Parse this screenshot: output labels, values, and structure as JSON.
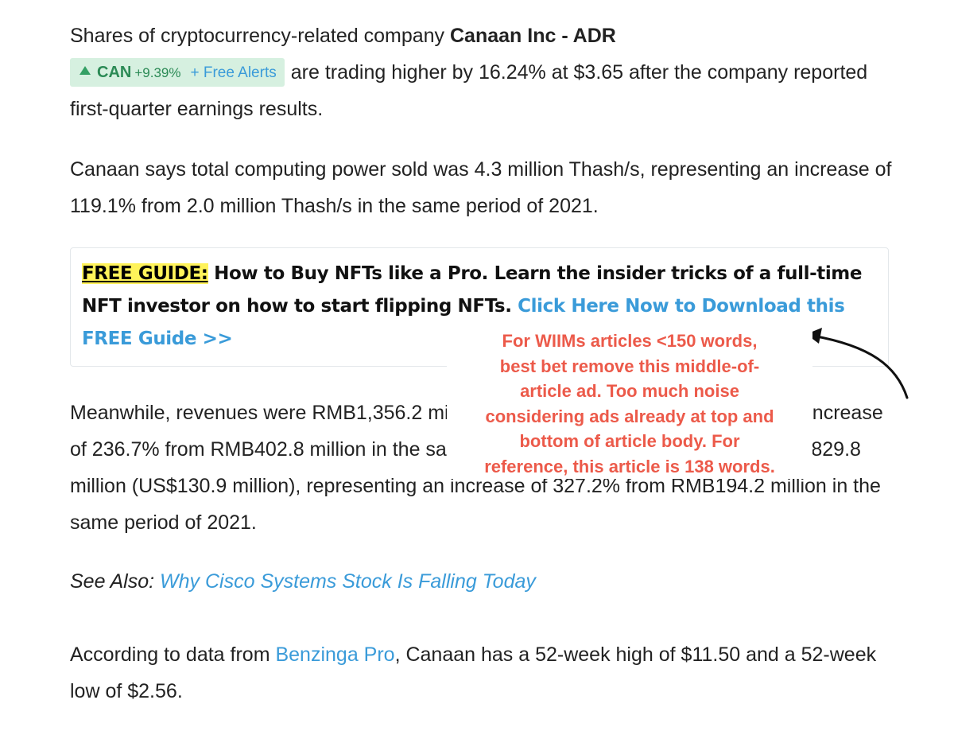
{
  "article": {
    "p1": {
      "text_before": "Shares of cryptocurrency-related company ",
      "company": "Canaan Inc - ADR",
      "text_after": "are trading higher by 16.24% at $3.65 after the company reported first-quarter earnings results."
    },
    "ticker": {
      "symbol": "CAN",
      "change": "+9.39%",
      "alerts_label": "+ Free Alerts"
    },
    "p2": "Canaan says total computing power sold was 4.3 million Thash/s, representing an increase of 119.1% from 2.0 million Thash/s in the same period of 2021.",
    "ad": {
      "tag": "FREE GUIDE:",
      "text": " How to Buy NFTs like a Pro. Learn the insider tricks of a full-time NFT investor on how to start flipping NFTs. ",
      "link": "Click Here Now to Download this FREE Guide >>"
    },
    "p3": "Meanwhile, revenues were RMB1,356.2 million (US$213.9 million), representing an increase of 236.7% from RMB402.8 million in the same period of 2021. Gross profit was RMB829.8 million (US$130.9 million), representing an increase of 327.2% from RMB194.2 million in the same period of 2021.",
    "see_also": {
      "label": "See Also:",
      "link": "Why Cisco Systems Stock Is Falling Today"
    },
    "p5": {
      "text_before": "According to data from ",
      "link": "Benzinga Pro",
      "text_after": ", Canaan has a 52-week high of $11.50 and a 52-week low of $2.56."
    }
  },
  "annotation": {
    "lines": [
      "For WIIMs articles <150 words,",
      "best bet remove this middle-of-",
      "article ad. Too much noise",
      "considering ads already at top and",
      "bottom of article body. For",
      "reference, this article is 138 words."
    ]
  },
  "colors": {
    "link": "#3a9bd9",
    "annotation": "#ec5a4a",
    "ticker_green": "#2b8a55",
    "ticker_bg": "#d6f0e0",
    "highlight": "#fff35a"
  },
  "icons": [
    "up-triangle-icon",
    "curved-arrow-icon"
  ]
}
